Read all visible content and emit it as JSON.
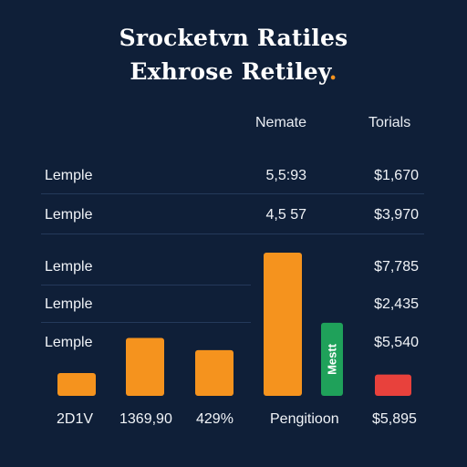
{
  "title": {
    "line1": "Srocketvn Ratiles",
    "line2": "Exhrose Retiley",
    "line2_accent": "."
  },
  "table": {
    "headers": [
      "Nemate",
      "Torials"
    ],
    "rows": [
      {
        "label": "Lemple",
        "nemate": "5,5:93",
        "torials": "$1,670"
      },
      {
        "label": "Lemple",
        "nemate": "4,5 57",
        "torials": "$3,970"
      },
      {
        "label": "Lemple",
        "nemate": "",
        "torials": "$7,785"
      },
      {
        "label": "Lemple",
        "nemate": "",
        "torials": "$2,435"
      },
      {
        "label": "Lemple",
        "nemate": "",
        "torials": "$5,540"
      }
    ]
  },
  "bottom_labels": [
    "2D1V",
    "1369,90",
    "429%",
    "Pengitioon",
    "$5,895"
  ],
  "chart_data": {
    "type": "bar",
    "categories": [
      "2D1V",
      "1369,90",
      "429%",
      "Pengitioon",
      "",
      ""
    ],
    "values": [
      1.5,
      3.8,
      3.0,
      9.4,
      4.8,
      1.4
    ],
    "bar_labels": [
      "",
      "",
      "",
      "",
      "Mestt",
      ""
    ],
    "colors": [
      "#f5931e",
      "#f5931e",
      "#f5931e",
      "#f5931e",
      "#1fa15a",
      "#e8413c"
    ],
    "ylim": [
      0,
      10
    ]
  },
  "colors": {
    "background": "#0f1f38",
    "accent": "#f5931e",
    "green": "#1fa15a",
    "red": "#e8413c"
  }
}
